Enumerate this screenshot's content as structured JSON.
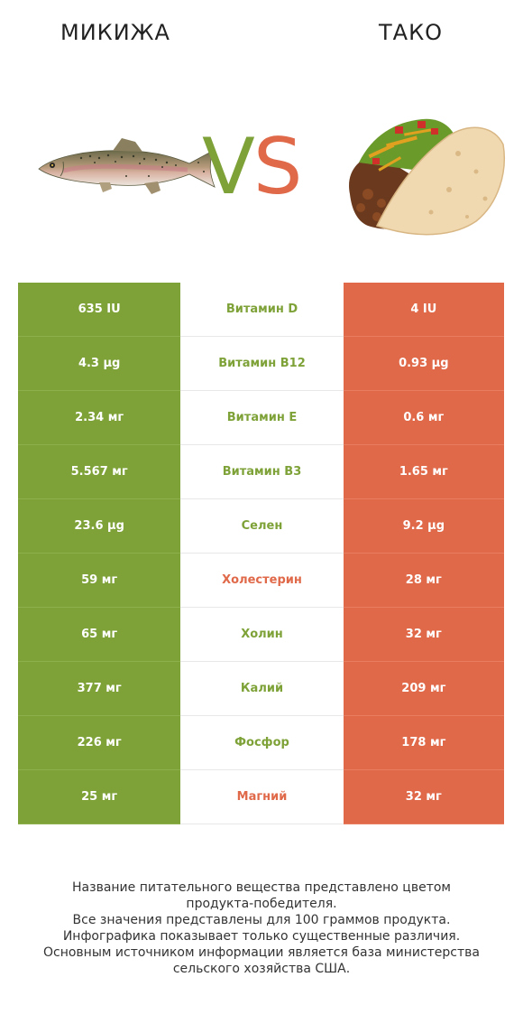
{
  "header": {
    "left_title": "МИКИЖА",
    "right_title": "ТАКО",
    "vs_v": "V",
    "vs_s": "S"
  },
  "colors": {
    "left": "#7ea238",
    "right": "#e0694a"
  },
  "rows": [
    {
      "left": "635 IU",
      "nutrient": "Витамин D",
      "right": "4 IU",
      "winner": "left"
    },
    {
      "left": "4.3 µg",
      "nutrient": "Витамин B12",
      "right": "0.93 µg",
      "winner": "left"
    },
    {
      "left": "2.34 мг",
      "nutrient": "Витамин E",
      "right": "0.6 мг",
      "winner": "left"
    },
    {
      "left": "5.567 мг",
      "nutrient": "Витамин B3",
      "right": "1.65 мг",
      "winner": "left"
    },
    {
      "left": "23.6 µg",
      "nutrient": "Селен",
      "right": "9.2 µg",
      "winner": "left"
    },
    {
      "left": "59 мг",
      "nutrient": "Холестерин",
      "right": "28 мг",
      "winner": "right"
    },
    {
      "left": "65 мг",
      "nutrient": "Холин",
      "right": "32 мг",
      "winner": "left"
    },
    {
      "left": "377 мг",
      "nutrient": "Калий",
      "right": "209 мг",
      "winner": "left"
    },
    {
      "left": "226 мг",
      "nutrient": "Фосфор",
      "right": "178 мг",
      "winner": "left"
    },
    {
      "left": "25 мг",
      "nutrient": "Магний",
      "right": "32 мг",
      "winner": "right"
    }
  ],
  "footer": {
    "line1": "Название питательного вещества представлено цветом",
    "line2": "продукта-победителя.",
    "line3_pre": "Все значения представлены для ",
    "line3_bold": "100 граммов",
    "line3_post": " продукта.",
    "line4": "Инфографика показывает только существенные различия.",
    "line5": "Основным источником информации является база министерства",
    "line6": "сельского хозяйства США."
  }
}
